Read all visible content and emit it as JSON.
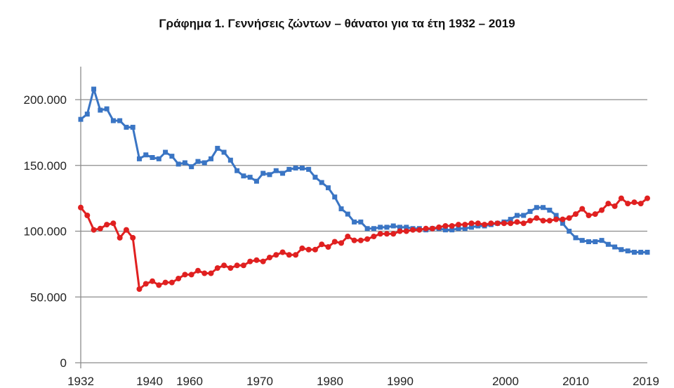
{
  "chart_data": {
    "type": "line",
    "title": "Γράφημα 1.  Γεννήσεις ζώντων – θάνατοι για τα έτη 1932 – 2019",
    "xlabel": "",
    "ylabel": "",
    "x_start": 1932,
    "x_end": 2019,
    "ylim": [
      0,
      225000
    ],
    "yticks": [
      0,
      50000,
      100000,
      150000,
      200000
    ],
    "ytick_labels": [
      "0",
      "50.000",
      "100.000",
      "150.000",
      "200.000"
    ],
    "xtick_labels": [
      "1932",
      "1940",
      "1960",
      "1970",
      "1980",
      "1990",
      "2000",
      "2010",
      "2019"
    ],
    "grid": true,
    "legend": "none",
    "series": [
      {
        "name": "Γεννήσεις ζώντων",
        "color": "#3a75c4",
        "marker": "square",
        "values": [
          185000,
          189000,
          208000,
          192000,
          193000,
          184000,
          184000,
          179000,
          179000,
          155000,
          158000,
          156000,
          155000,
          160000,
          157000,
          151000,
          152000,
          149000,
          153000,
          152000,
          155000,
          163000,
          160000,
          154000,
          146000,
          142000,
          141000,
          138000,
          144000,
          143000,
          146000,
          144000,
          147000,
          148000,
          148000,
          147000,
          141000,
          137000,
          133000,
          126000,
          117000,
          113000,
          107000,
          107000,
          102000,
          102000,
          103000,
          103000,
          104000,
          103000,
          103000,
          102000,
          102000,
          101000,
          102000,
          102000,
          101000,
          101000,
          102000,
          102000,
          103000,
          104000,
          104000,
          105000,
          106000,
          107000,
          109000,
          112000,
          112000,
          115000,
          118000,
          118000,
          116000,
          112000,
          106000,
          100000,
          95000,
          93000,
          92000,
          92000,
          93000,
          90000,
          88000,
          86000,
          85000,
          84000,
          84000,
          84000
        ]
      },
      {
        "name": "Θάνατοι",
        "color": "#e02020",
        "marker": "circle",
        "values": [
          118000,
          112000,
          101000,
          102000,
          105000,
          106000,
          95000,
          101000,
          95000,
          56000,
          60000,
          62000,
          59000,
          61000,
          61000,
          64000,
          67000,
          67000,
          70000,
          68000,
          68000,
          72000,
          74000,
          72000,
          74000,
          74000,
          77000,
          78000,
          77000,
          80000,
          82000,
          84000,
          82000,
          82000,
          87000,
          86000,
          86000,
          90000,
          88000,
          92000,
          91000,
          96000,
          93000,
          93000,
          94000,
          96000,
          98000,
          98000,
          98000,
          100000,
          100000,
          101000,
          101000,
          102000,
          102000,
          103000,
          104000,
          104000,
          105000,
          105000,
          106000,
          106000,
          105000,
          106000,
          106000,
          106000,
          106000,
          107000,
          106000,
          108000,
          110000,
          108000,
          108000,
          109000,
          109000,
          110000,
          113000,
          117000,
          112000,
          113000,
          116000,
          121000,
          119000,
          125000,
          121000,
          122000,
          121000,
          125000
        ]
      }
    ]
  }
}
